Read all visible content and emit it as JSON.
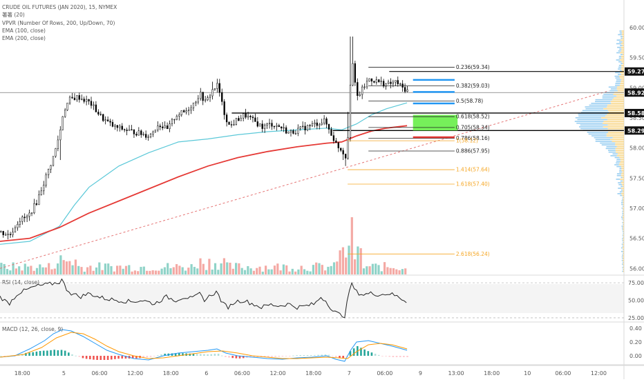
{
  "legend": {
    "main": "CRUDE OIL FUTURES (JAN 2020), 15, NYMEX",
    "vol": "著著 (20)",
    "vpvr": "VPVR (Number Of Rows, 200, Up/Down, 70)",
    "ema100": "EMA (100, close)",
    "ema200": "EMA (200, close)",
    "rsi": "RSI (14, close)",
    "macd": "MACD (12, 26, close, 9)"
  },
  "colors": {
    "up": "#26a69a",
    "down": "#ef5350",
    "candle": "#000000",
    "ema100": "#5ac8d8",
    "ema200": "#e53935",
    "fib_black": "#222222",
    "fib_orange": "#f5a623",
    "fib_blue": "#2196f3",
    "green_box": "#76f05a",
    "vol_up": "#8fd3c8",
    "vol_down": "#f4a9a4"
  },
  "chart_data": [
    {
      "type": "candlestick",
      "title": "CRUDE OIL FUTURES (JAN 2020), 15, NYMEX",
      "y_ticks": [
        "60.00",
        "59.50",
        "59.00",
        "58.50",
        "58.00",
        "57.50",
        "57.00",
        "56.50",
        "56.00"
      ],
      "y_tick_values": [
        60.0,
        59.5,
        59.0,
        58.5,
        58.0,
        57.5,
        57.0,
        56.5,
        56.0
      ],
      "ylim": [
        55.9,
        60.4
      ],
      "x_ticks": [
        "18:00",
        "5",
        "06:00",
        "12:00",
        "18:00",
        "6",
        "06:00",
        "12:00",
        "18:00",
        "7",
        "06:00",
        "9",
        "13:00",
        "18:00",
        "10",
        "06:00",
        "12:00"
      ],
      "x_tick_values": [
        7.5,
        21.5,
        33.5,
        45.5,
        57.5,
        69.5,
        81.5,
        93.5,
        105.5,
        117.5,
        129.5,
        141.5,
        153.5,
        165.5,
        177.5,
        189.5,
        201.5
      ],
      "xlim": [
        0,
        210
      ],
      "close_anchors": [
        [
          0,
          56.6
        ],
        [
          3,
          56.55
        ],
        [
          6,
          56.8
        ],
        [
          9,
          56.85
        ],
        [
          12,
          57.1
        ],
        [
          15,
          57.5
        ],
        [
          18,
          57.9
        ],
        [
          20,
          58.3
        ],
        [
          21,
          58.6
        ],
        [
          23,
          58.8
        ],
        [
          26,
          58.85
        ],
        [
          30,
          58.75
        ],
        [
          34,
          58.5
        ],
        [
          38,
          58.35
        ],
        [
          42,
          58.3
        ],
        [
          46,
          58.25
        ],
        [
          50,
          58.2
        ],
        [
          53,
          58.4
        ],
        [
          56,
          58.3
        ],
        [
          59,
          58.55
        ],
        [
          62,
          58.6
        ],
        [
          65,
          58.75
        ],
        [
          67,
          58.9
        ],
        [
          69,
          58.75
        ],
        [
          71,
          58.95
        ],
        [
          73,
          59.05
        ],
        [
          75,
          58.6
        ],
        [
          77,
          58.35
        ],
        [
          79,
          58.45
        ],
        [
          82,
          58.55
        ],
        [
          85,
          58.45
        ],
        [
          88,
          58.35
        ],
        [
          91,
          58.4
        ],
        [
          94,
          58.35
        ],
        [
          97,
          58.25
        ],
        [
          100,
          58.3
        ],
        [
          103,
          58.35
        ],
        [
          106,
          58.4
        ],
        [
          109,
          58.45
        ],
        [
          111,
          58.25
        ],
        [
          113,
          58.05
        ],
        [
          115,
          57.95
        ],
        [
          116,
          57.85
        ],
        [
          117,
          58.3
        ],
        [
          118,
          59.6
        ],
        [
          119,
          59.1
        ],
        [
          120,
          58.85
        ],
        [
          122,
          59.0
        ],
        [
          124,
          59.15
        ],
        [
          127,
          59.1
        ],
        [
          130,
          59.05
        ],
        [
          133,
          59.1
        ],
        [
          135,
          59.0
        ],
        [
          137,
          58.95
        ]
      ],
      "high_extras": [
        [
          118,
          59.85
        ],
        [
          117,
          58.6
        ],
        [
          73,
          59.15
        ],
        [
          71,
          59.1
        ]
      ],
      "low_extras": [
        [
          116,
          57.7
        ],
        [
          115,
          57.8
        ],
        [
          20,
          57.8
        ]
      ],
      "ema100": [
        [
          0,
          56.4
        ],
        [
          10,
          56.45
        ],
        [
          20,
          56.7
        ],
        [
          25,
          57.05
        ],
        [
          30,
          57.35
        ],
        [
          40,
          57.7
        ],
        [
          50,
          57.92
        ],
        [
          60,
          58.1
        ],
        [
          70,
          58.15
        ],
        [
          80,
          58.22
        ],
        [
          90,
          58.27
        ],
        [
          100,
          58.3
        ],
        [
          110,
          58.33
        ],
        [
          115,
          58.3
        ],
        [
          120,
          58.4
        ],
        [
          125,
          58.55
        ],
        [
          130,
          58.65
        ],
        [
          137,
          58.75
        ]
      ],
      "ema200": [
        [
          0,
          56.45
        ],
        [
          10,
          56.5
        ],
        [
          20,
          56.68
        ],
        [
          30,
          56.92
        ],
        [
          40,
          57.12
        ],
        [
          50,
          57.32
        ],
        [
          60,
          57.52
        ],
        [
          70,
          57.7
        ],
        [
          80,
          57.84
        ],
        [
          90,
          57.94
        ],
        [
          100,
          58.02
        ],
        [
          110,
          58.08
        ],
        [
          115,
          58.1
        ],
        [
          120,
          58.2
        ],
        [
          125,
          58.28
        ],
        [
          130,
          58.33
        ],
        [
          137,
          58.37
        ]
      ],
      "trendline": {
        "from": [
          0,
          56.0
        ],
        "to": [
          205,
          58.95
        ]
      },
      "fib_levels": [
        {
          "label": "0.236(59.34)",
          "value": 59.34,
          "color": "black"
        },
        {
          "label": "0.382(59.03)",
          "value": 59.03,
          "color": "black"
        },
        {
          "label": "0.5(58.78)",
          "value": 58.78,
          "color": "black"
        },
        {
          "label": "0.618(58.52)",
          "value": 58.52,
          "color": "black"
        },
        {
          "label": "0.705(58.34)",
          "value": 58.34,
          "color": "black"
        },
        {
          "label": "0.786(58.16)",
          "value": 58.16,
          "color": "black"
        },
        {
          "label": "1(58.12)",
          "value": 58.12,
          "color": "orange"
        },
        {
          "label": "0.886(57.95)",
          "value": 57.95,
          "color": "black"
        },
        {
          "label": "1.414(57.64)",
          "value": 57.64,
          "color": "orange"
        },
        {
          "label": "1.618(57.40)",
          "value": 57.4,
          "color": "orange"
        },
        {
          "label": "2.618(56.24)",
          "value": 56.24,
          "color": "orange"
        }
      ],
      "horizontal_levels": [
        58.92,
        58.58,
        58.29,
        59.27
      ],
      "blue_markers": [
        59.13,
        58.93,
        58.74
      ],
      "red_marker": 58.27,
      "green_zone": [
        58.55,
        58.29
      ],
      "price_boxes": [
        "59.27",
        "58.92",
        "58.58",
        "58.29"
      ],
      "price_box_values": [
        59.27,
        58.92,
        58.58,
        58.29
      ]
    },
    {
      "type": "line",
      "title": "RSI (14, close)",
      "y_ticks": [
        "75.00",
        "50.00",
        "25.00"
      ],
      "y_tick_values": [
        75,
        50,
        25
      ],
      "ylim": [
        20,
        85
      ],
      "anchors": [
        [
          0,
          55
        ],
        [
          3,
          45
        ],
        [
          6,
          60
        ],
        [
          9,
          65
        ],
        [
          12,
          70
        ],
        [
          15,
          72
        ],
        [
          18,
          74
        ],
        [
          20,
          76
        ],
        [
          21,
          80
        ],
        [
          22,
          68
        ],
        [
          24,
          60
        ],
        [
          27,
          55
        ],
        [
          30,
          60
        ],
        [
          33,
          55
        ],
        [
          36,
          52
        ],
        [
          40,
          50
        ],
        [
          44,
          48
        ],
        [
          48,
          50
        ],
        [
          52,
          45
        ],
        [
          56,
          55
        ],
        [
          59,
          50
        ],
        [
          62,
          55
        ],
        [
          65,
          52
        ],
        [
          67,
          60
        ],
        [
          69,
          50
        ],
        [
          71,
          58
        ],
        [
          73,
          62
        ],
        [
          75,
          45
        ],
        [
          77,
          40
        ],
        [
          79,
          48
        ],
        [
          82,
          50
        ],
        [
          85,
          45
        ],
        [
          88,
          40
        ],
        [
          91,
          44
        ],
        [
          94,
          42
        ],
        [
          97,
          45
        ],
        [
          100,
          40
        ],
        [
          103,
          42
        ],
        [
          106,
          45
        ],
        [
          108,
          55
        ],
        [
          110,
          48
        ],
        [
          112,
          35
        ],
        [
          114,
          30
        ],
        [
          116,
          28
        ],
        [
          117,
          50
        ],
        [
          118,
          75
        ],
        [
          120,
          62
        ],
        [
          122,
          58
        ],
        [
          125,
          60
        ],
        [
          128,
          58
        ],
        [
          131,
          60
        ],
        [
          134,
          55
        ],
        [
          137,
          48
        ]
      ]
    },
    {
      "type": "macd",
      "title": "MACD (12, 26, close, 9)",
      "y_ticks": [
        "0.40",
        "0.20",
        "0.00"
      ],
      "y_tick_values": [
        0.4,
        0.2,
        0.0
      ],
      "ylim": [
        -0.12,
        0.48
      ],
      "macd_anchors": [
        [
          0,
          -0.02
        ],
        [
          5,
          0.0
        ],
        [
          10,
          0.1
        ],
        [
          15,
          0.22
        ],
        [
          18,
          0.32
        ],
        [
          21,
          0.38
        ],
        [
          24,
          0.36
        ],
        [
          28,
          0.28
        ],
        [
          32,
          0.18
        ],
        [
          36,
          0.08
        ],
        [
          40,
          0.02
        ],
        [
          45,
          -0.04
        ],
        [
          50,
          -0.06
        ],
        [
          55,
          0.0
        ],
        [
          60,
          0.04
        ],
        [
          65,
          0.06
        ],
        [
          70,
          0.08
        ],
        [
          73,
          0.1
        ],
        [
          76,
          0.04
        ],
        [
          80,
          0.0
        ],
        [
          85,
          -0.02
        ],
        [
          90,
          -0.04
        ],
        [
          95,
          -0.05
        ],
        [
          100,
          -0.03
        ],
        [
          105,
          -0.02
        ],
        [
          110,
          0.0
        ],
        [
          113,
          -0.05
        ],
        [
          116,
          -0.08
        ],
        [
          118,
          0.08
        ],
        [
          120,
          0.2
        ],
        [
          124,
          0.22
        ],
        [
          128,
          0.18
        ],
        [
          132,
          0.14
        ],
        [
          137,
          0.08
        ]
      ],
      "signal_anchors": [
        [
          0,
          -0.02
        ],
        [
          8,
          0.02
        ],
        [
          14,
          0.12
        ],
        [
          19,
          0.26
        ],
        [
          24,
          0.34
        ],
        [
          28,
          0.32
        ],
        [
          32,
          0.24
        ],
        [
          36,
          0.14
        ],
        [
          40,
          0.06
        ],
        [
          45,
          0.0
        ],
        [
          50,
          -0.04
        ],
        [
          55,
          -0.03
        ],
        [
          60,
          0.0
        ],
        [
          65,
          0.03
        ],
        [
          70,
          0.06
        ],
        [
          75,
          0.07
        ],
        [
          80,
          0.04
        ],
        [
          85,
          0.0
        ],
        [
          90,
          -0.02
        ],
        [
          95,
          -0.04
        ],
        [
          100,
          -0.04
        ],
        [
          105,
          -0.03
        ],
        [
          110,
          -0.02
        ],
        [
          114,
          -0.03
        ],
        [
          117,
          -0.04
        ],
        [
          120,
          0.06
        ],
        [
          124,
          0.16
        ],
        [
          128,
          0.18
        ],
        [
          132,
          0.16
        ],
        [
          137,
          0.1
        ]
      ]
    }
  ]
}
